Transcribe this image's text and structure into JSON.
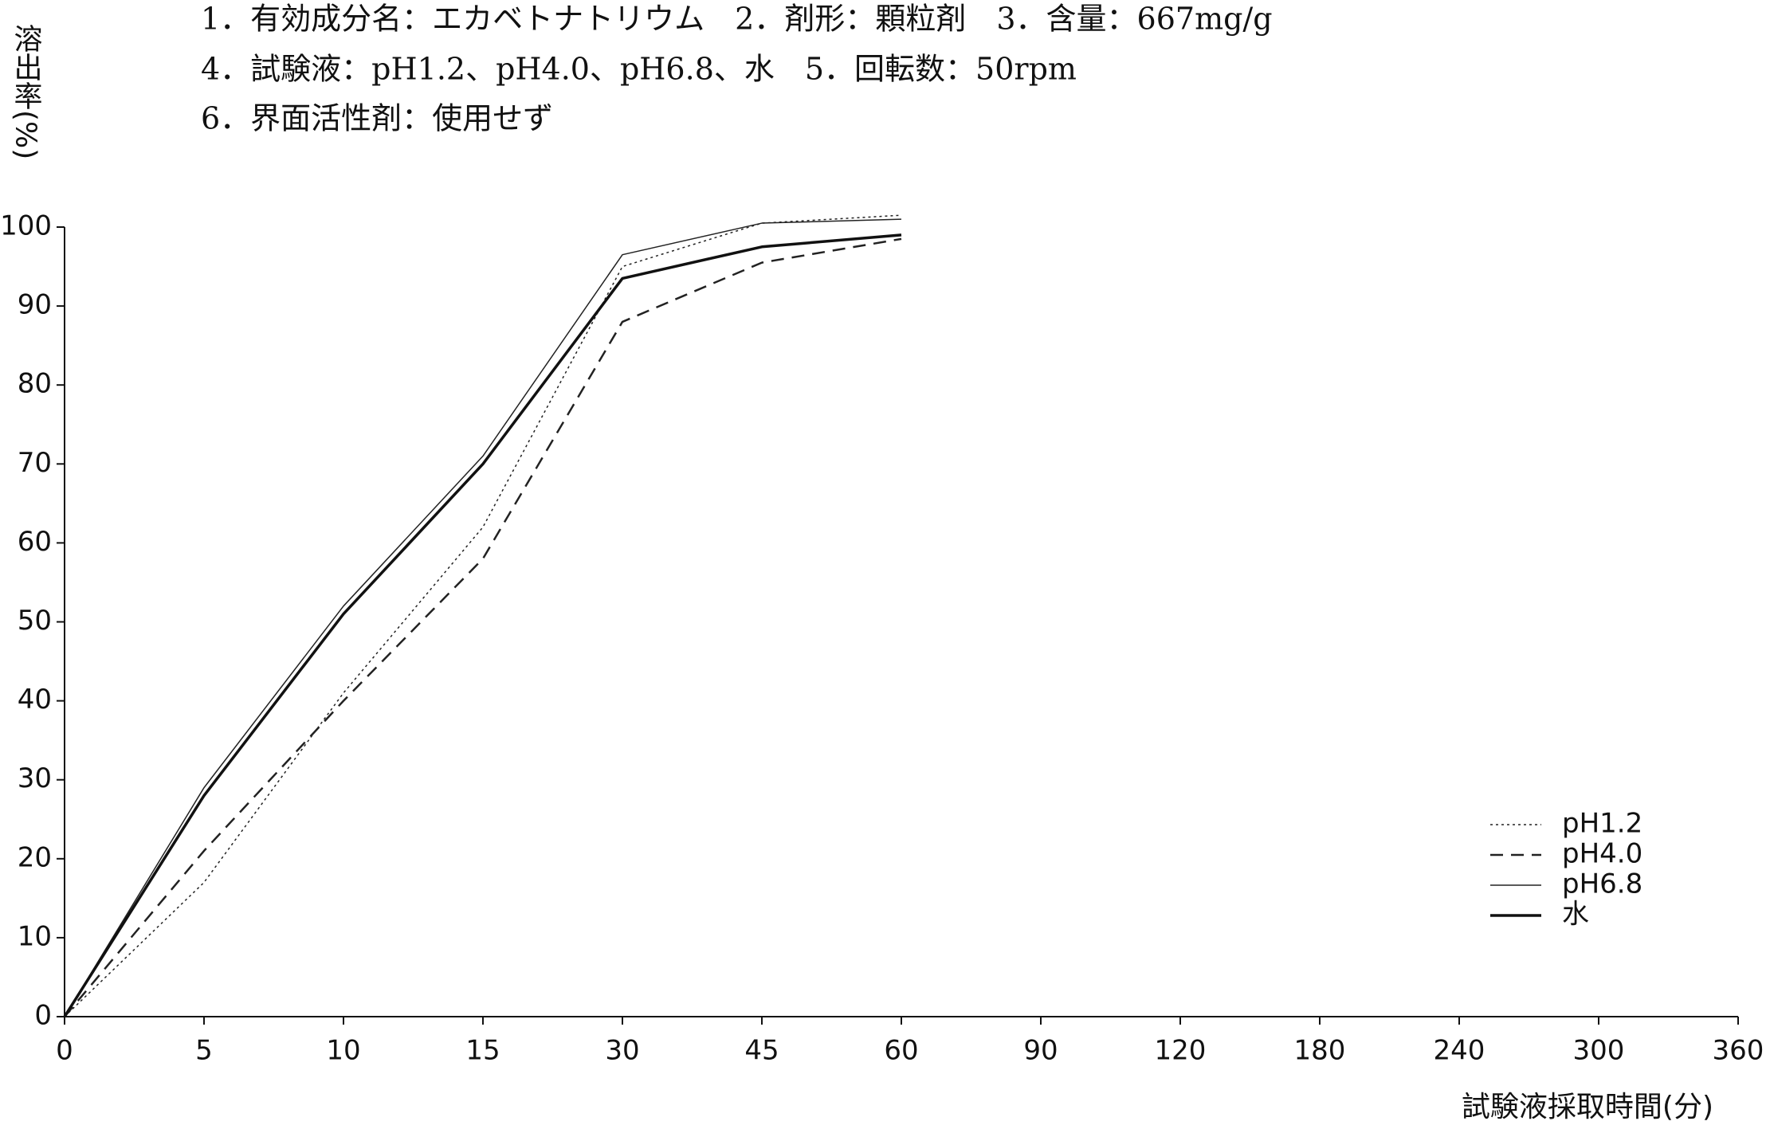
{
  "chart_data": {
    "type": "line",
    "notes": [
      "1．有効成分名：エカベトナトリウム　2．剤形：顆粒剤　3．含量：667mg/g",
      "4．試験液：pH1.2、pH4.0、pH6.8、水　5．回転数：50rpm",
      "6．界面活性剤：使用せず"
    ],
    "y_label": "溶出率(%)",
    "x_label": "試験液採取時間(分)",
    "categories": [
      "0",
      "5",
      "10",
      "15",
      "30",
      "45",
      "60",
      "90",
      "120",
      "180",
      "240",
      "300",
      "360"
    ],
    "ylim": [
      0,
      100
    ],
    "yticks": [
      0,
      10,
      20,
      30,
      40,
      50,
      60,
      70,
      80,
      90,
      100
    ],
    "grid": false,
    "legend": "lower right",
    "series": [
      {
        "name": "pH1.2",
        "color": "#222222",
        "linestyle": "dotted",
        "linewidth": 1.5,
        "values": [
          0,
          17,
          41,
          62,
          95,
          100.5,
          101.5,
          null,
          null,
          null,
          null,
          null,
          null
        ]
      },
      {
        "name": "pH4.0",
        "color": "#222222",
        "linestyle": "dashed",
        "linewidth": 2.5,
        "values": [
          0,
          21,
          40,
          58,
          88,
          95.5,
          98.5,
          null,
          null,
          null,
          null,
          null,
          null
        ]
      },
      {
        "name": "pH6.8",
        "color": "#222222",
        "linestyle": "solid",
        "linewidth": 1.5,
        "values": [
          0,
          29,
          52,
          71,
          96.5,
          100.5,
          101,
          null,
          null,
          null,
          null,
          null,
          null
        ]
      },
      {
        "name": "水",
        "color": "#111111",
        "linestyle": "solid",
        "linewidth": 3.5,
        "values": [
          0,
          28,
          51,
          70,
          93.5,
          97.5,
          99,
          null,
          null,
          null,
          null,
          null,
          null
        ]
      }
    ]
  }
}
